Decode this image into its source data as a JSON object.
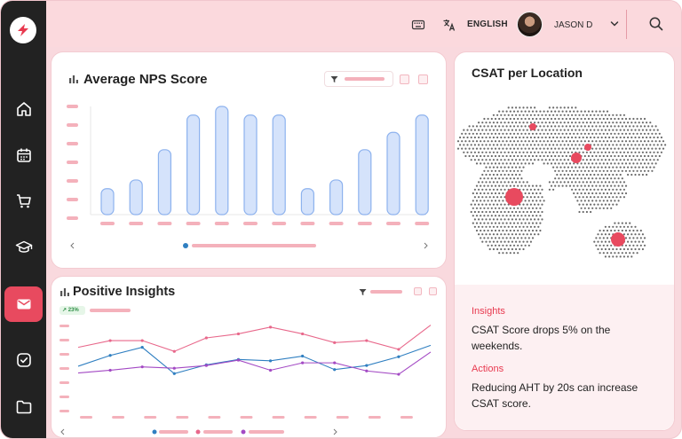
{
  "header": {
    "language_label": "ENGLISH",
    "user_name": "JASON D"
  },
  "sidebar": {
    "items": [
      {
        "icon": "home-icon"
      },
      {
        "icon": "calendar-icon"
      },
      {
        "icon": "cart-icon"
      },
      {
        "icon": "graduation-cap-icon"
      },
      {
        "icon": "mail-icon",
        "active": true
      },
      {
        "icon": "check-circle-icon"
      },
      {
        "icon": "folder-icon"
      }
    ]
  },
  "nps": {
    "title": "Average NPS Score",
    "chart_data": {
      "type": "bar",
      "values": [
        3,
        4,
        7.5,
        11.5,
        12.5,
        11.5,
        11.5,
        3,
        4,
        7.5,
        9.5,
        11.5
      ],
      "ylim": [
        0,
        12.5
      ]
    }
  },
  "insights": {
    "title": "Positive Insights",
    "badge": "23%",
    "chart_data": {
      "type": "line",
      "series": [
        {
          "color": "#e8688b",
          "values": [
            8.6,
            9.6,
            9.6,
            8,
            10,
            10.6,
            11.6,
            10.6,
            9.3,
            9.6,
            8.3,
            11.9
          ]
        },
        {
          "color": "#2f7fc1",
          "values": [
            5.8,
            7.4,
            8.6,
            4.7,
            6,
            6.8,
            6.6,
            7.3,
            5.3,
            5.9,
            7.2,
            8.9
          ]
        },
        {
          "color": "#a349c4",
          "values": [
            4.8,
            5.2,
            5.7,
            5.5,
            5.9,
            6.7,
            5.2,
            6.3,
            6.3,
            5.1,
            4.6,
            7.9
          ]
        }
      ],
      "ylim": [
        0,
        12.5
      ]
    }
  },
  "csat": {
    "title": "CSAT per Location",
    "insights_label": "Insights",
    "insights_text": "CSAT Score drops 5% on the weekends.",
    "actions_label": "Actions",
    "actions_text": "Reducing AHT by 20s can increase CSAT score.",
    "accent_color": "#e84a5f"
  }
}
